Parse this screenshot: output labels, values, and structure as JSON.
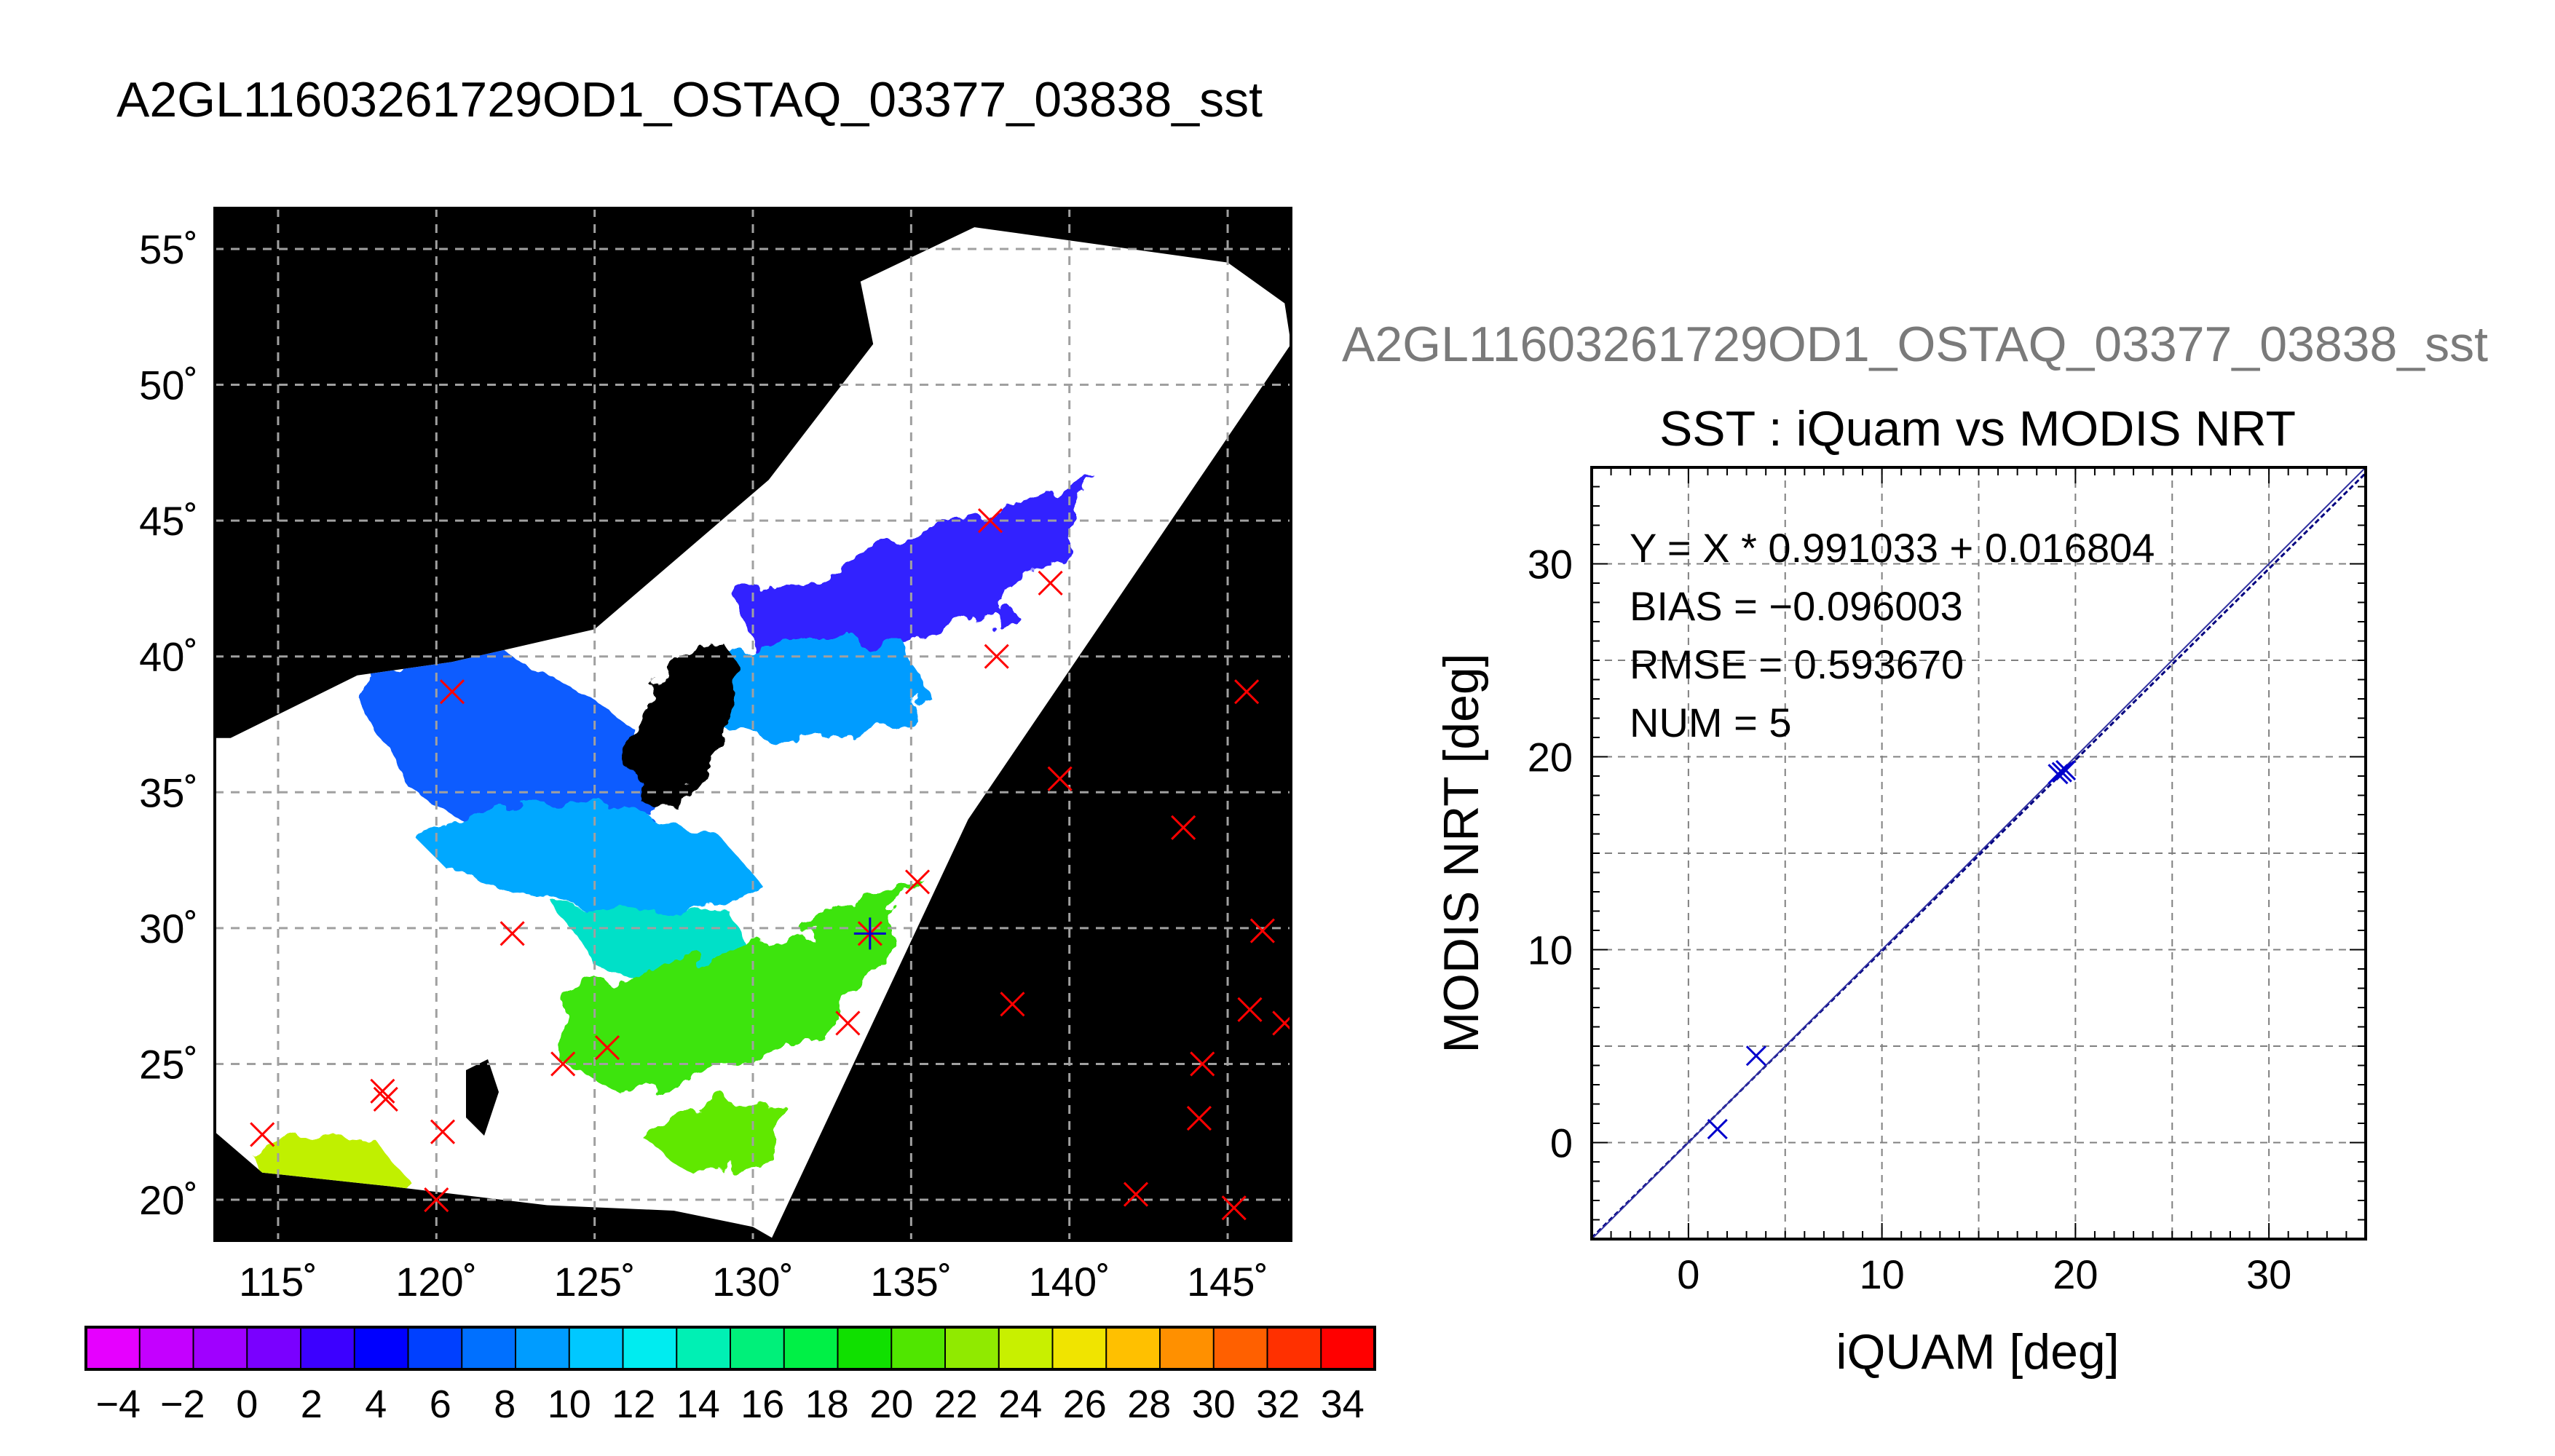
{
  "chart_data": [
    {
      "type": "map",
      "title": "A2GL11603261729OD1_OSTAQ_03377_03838_sst",
      "lon_range": [
        113,
        147
      ],
      "lat_range": [
        18.5,
        56.5
      ],
      "lon_ticks": [
        115,
        120,
        125,
        130,
        135,
        140,
        145
      ],
      "lat_ticks": [
        20,
        25,
        30,
        35,
        40,
        45,
        50,
        55
      ],
      "lon_tick_labels": [
        "115˚",
        "120˚",
        "125˚",
        "130˚",
        "135˚",
        "140˚",
        "145˚"
      ],
      "lat_tick_labels": [
        "20˚",
        "25˚",
        "30˚",
        "35˚",
        "40˚",
        "45˚",
        "50˚",
        "55˚"
      ],
      "grid": true,
      "colors": {
        "land_nodata": "#000000",
        "no_retrieval": "#ffffff",
        "frame": "#000000"
      },
      "marker_colors": {
        "outside_match": "#ff0000",
        "matchup": "#0000cc"
      },
      "matchups_outside_swath": [
        [
          114.5,
          22.4
        ],
        [
          118.3,
          24.0
        ],
        [
          118.4,
          23.7
        ],
        [
          120.2,
          22.5
        ],
        [
          120.0,
          20.0
        ],
        [
          120.5,
          38.7
        ],
        [
          122.4,
          29.8
        ],
        [
          124.0,
          25.0
        ],
        [
          125.4,
          25.6
        ],
        [
          133.0,
          26.5
        ],
        [
          135.2,
          31.7
        ],
        [
          137.5,
          45.0
        ],
        [
          138.2,
          27.2
        ],
        [
          137.7,
          40.0
        ],
        [
          139.4,
          42.7
        ],
        [
          139.7,
          35.5
        ],
        [
          142.1,
          20.2
        ],
        [
          143.6,
          33.7
        ],
        [
          144.1,
          23.0
        ],
        [
          144.2,
          25.0
        ],
        [
          145.2,
          19.7
        ],
        [
          145.6,
          38.7
        ],
        [
          145.7,
          27.0
        ],
        [
          146.1,
          29.9
        ],
        [
          146.8,
          26.5
        ]
      ],
      "matchups_in_swath": [
        [
          133.7,
          29.8
        ]
      ]
    },
    {
      "type": "colorbar",
      "ticks": [
        -4,
        -2,
        0,
        2,
        4,
        6,
        8,
        10,
        12,
        14,
        16,
        18,
        20,
        22,
        24,
        26,
        28,
        30,
        32,
        34
      ],
      "tick_labels": [
        "−4",
        "−2",
        "0",
        "2",
        "4",
        "6",
        "8",
        "10",
        "12",
        "14",
        "16",
        "18",
        "20",
        "22",
        "24",
        "26",
        "28",
        "30",
        "32",
        "34"
      ],
      "min": -5,
      "max": 35,
      "colors": [
        "#e600ff",
        "#c400ff",
        "#a000ff",
        "#7a00ff",
        "#3c00ff",
        "#0000ff",
        "#0040ff",
        "#0070ff",
        "#009cff",
        "#00c8ff",
        "#00ecf0",
        "#00f0b4",
        "#00f07a",
        "#00f046",
        "#10e000",
        "#50e600",
        "#90ea00",
        "#c8f000",
        "#f0e400",
        "#ffc000",
        "#ff9000",
        "#ff6000",
        "#ff3000",
        "#ff0000"
      ]
    },
    {
      "type": "scatter",
      "outer_title": "A2GL11603261729OD1_OSTAQ_03377_03838_sst",
      "title": "SST : iQuam vs MODIS NRT",
      "xlabel": "iQUAM [deg]",
      "ylabel": "MODIS NRT [deg]",
      "xlim": [
        -5,
        35
      ],
      "ylim": [
        -5,
        35
      ],
      "xticks": [
        0,
        10,
        20,
        30
      ],
      "yticks": [
        0,
        10,
        20,
        30
      ],
      "grid": true,
      "points": [
        {
          "x": 1.5,
          "y": 0.7
        },
        {
          "x": 3.5,
          "y": 4.5
        },
        {
          "x": 19.3,
          "y": 19.2
        },
        {
          "x": 19.5,
          "y": 19.3
        },
        {
          "x": 19.1,
          "y": 19.1
        }
      ],
      "fit": {
        "slope": 0.991033,
        "intercept": 0.016804
      },
      "stats": [
        "Y = X * 0.991033 + 0.016804",
        "BIAS = −0.096003",
        "RMSE = 0.593670",
        "NUM = 5"
      ],
      "colors": {
        "points": "#0000cc",
        "fit_line": "#000080"
      }
    }
  ]
}
